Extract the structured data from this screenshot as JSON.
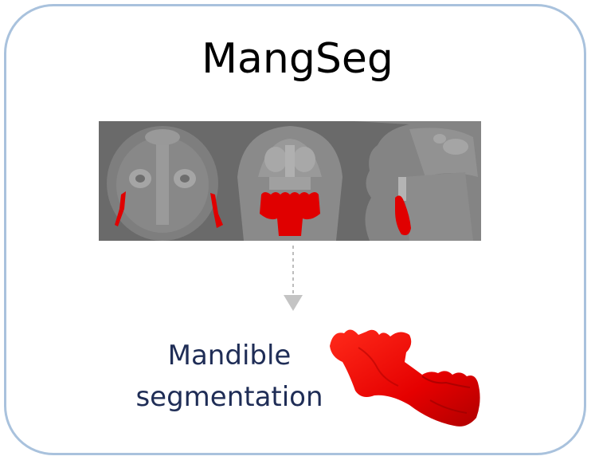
{
  "title": "MangSeg",
  "caption": {
    "line1": "Mandible",
    "line2": "segmentation"
  },
  "colors": {
    "border": "#a9c2dd",
    "segmentation": "#e00000",
    "caption_text": "#1f2d56",
    "ct_background": "#6c6c6c"
  },
  "icons": {
    "flow_arrow": "down-arrow-icon",
    "ct_views": [
      "axial-ct-slice",
      "coronal-ct-slice",
      "sagittal-ct-slice"
    ],
    "model": "mandible-3d-model"
  }
}
